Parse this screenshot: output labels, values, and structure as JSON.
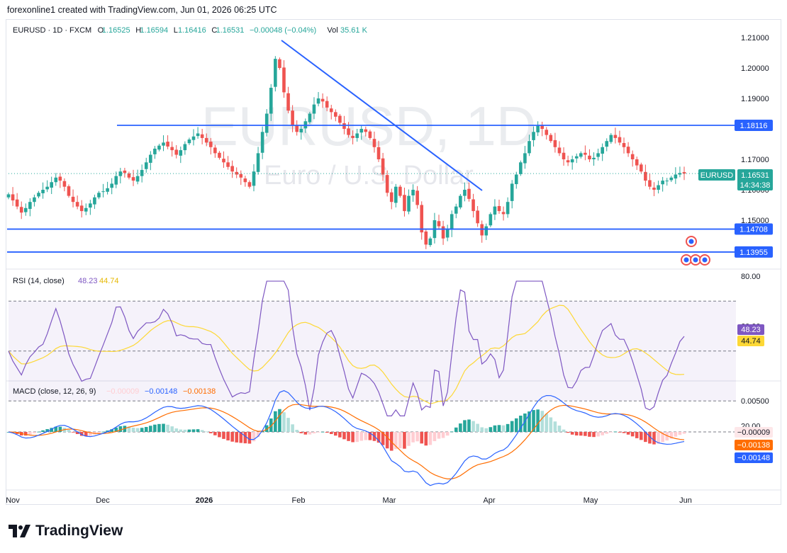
{
  "header": {
    "credit": "forexonline1 created with TradingView.com, Jun 01, 2026 06:25 UTC"
  },
  "legend": {
    "symbol": "EURUSD · 1D · FXCM",
    "o_label": "O",
    "o": "1.16525",
    "h_label": "H",
    "h": "1.16594",
    "l_label": "L",
    "l": "1.16416",
    "c_label": "C",
    "c": "1.16531",
    "change": "−0.00048 (−0.04%)",
    "vol_label": "Vol",
    "vol": "35.61 K"
  },
  "watermark": {
    "title": "EURUSD, 1D",
    "subtitle": "Euro / U.S. Dollar"
  },
  "price_axis": {
    "ticks": [
      "1.21000",
      "1.20000",
      "1.19000",
      "1.17000",
      "1.16000",
      "1.15000"
    ]
  },
  "levels": [
    {
      "value": "1.18116",
      "price": 1.18116
    },
    {
      "value": "1.14708",
      "price": 1.14708
    },
    {
      "value": "1.13955",
      "price": 1.13955
    }
  ],
  "last_price": {
    "symbol": "EURUSD",
    "value": "1.16531",
    "countdown": "14:34:38"
  },
  "rsi": {
    "title": "RSI (14, close)",
    "value": "48.23",
    "ma": "44.74",
    "ticks": [
      "80.00",
      "60.00",
      "20.00"
    ],
    "upper": 70,
    "middle": 50,
    "lower": 30
  },
  "macd": {
    "title": "MACD (close, 12, 26, 9)",
    "hist": "−0.00009",
    "macd": "−0.00148",
    "signal": "−0.00138",
    "axis_tick": "0.00500"
  },
  "time_axis": {
    "labels": [
      "Nov",
      "Dec",
      "2026",
      "Feb",
      "Mar",
      "Apr",
      "May",
      "Jun"
    ]
  },
  "colors": {
    "up": "#26a69a",
    "down": "#ef5350",
    "line": "#2962ff",
    "signal": "#ff6d00",
    "rsi": "#7e57c2",
    "rsi_ma": "#fdd835"
  },
  "brand": {
    "name": "TradingView",
    "icon": "tradingview-logo-icon"
  },
  "chart_data": {
    "type": "candlestick",
    "title": "EURUSD, 1D",
    "x_labels": [
      "Nov",
      "Dec",
      "2026",
      "Feb",
      "Mar",
      "Apr",
      "May",
      "Jun"
    ],
    "ylim": [
      1.138,
      1.2115
    ],
    "close_series": [
      1.1585,
      1.1565,
      1.1545,
      1.1525,
      1.154,
      1.156,
      1.1575,
      1.159,
      1.16,
      1.161,
      1.1625,
      1.164,
      1.163,
      1.161,
      1.158,
      1.156,
      1.1545,
      1.153,
      1.154,
      1.1555,
      1.1575,
      1.159,
      1.1595,
      1.1605,
      1.162,
      1.1645,
      1.166,
      1.1655,
      1.164,
      1.163,
      1.1645,
      1.1665,
      1.169,
      1.1715,
      1.1735,
      1.1745,
      1.1755,
      1.1742,
      1.173,
      1.1715,
      1.173,
      1.175,
      1.1765,
      1.1775,
      1.1785,
      1.177,
      1.1755,
      1.174,
      1.172,
      1.1705,
      1.169,
      1.1675,
      1.166,
      1.165,
      1.164,
      1.1625,
      1.161,
      1.166,
      1.172,
      1.179,
      1.185,
      1.1935,
      1.203,
      1.2,
      1.192,
      1.186,
      1.181,
      1.179,
      1.18,
      1.1825,
      1.185,
      1.188,
      1.19,
      1.189,
      1.187,
      1.1855,
      1.184,
      1.182,
      1.18,
      1.178,
      1.177,
      1.1785,
      1.18,
      1.179,
      1.177,
      1.174,
      1.17,
      1.165,
      1.159,
      1.156,
      1.161,
      1.158,
      1.153,
      1.158,
      1.16,
      1.155,
      1.146,
      1.142,
      1.144,
      1.15,
      1.148,
      1.144,
      1.147,
      1.152,
      1.1545,
      1.158,
      1.16,
      1.157,
      1.153,
      1.149,
      1.145,
      1.148,
      1.152,
      1.1545,
      1.153,
      1.152,
      1.156,
      1.162,
      1.165,
      1.169,
      1.172,
      1.176,
      1.179,
      1.181,
      1.18,
      1.178,
      1.176,
      1.174,
      1.172,
      1.17,
      1.169,
      1.17,
      1.171,
      1.172,
      1.1715,
      1.17,
      1.1705,
      1.172,
      1.174,
      1.176,
      1.178,
      1.177,
      1.1755,
      1.174,
      1.172,
      1.17,
      1.168,
      1.166,
      1.163,
      1.161,
      1.16,
      1.1615,
      1.163,
      1.163,
      1.164,
      1.165,
      1.1655,
      1.1653
    ]
  }
}
